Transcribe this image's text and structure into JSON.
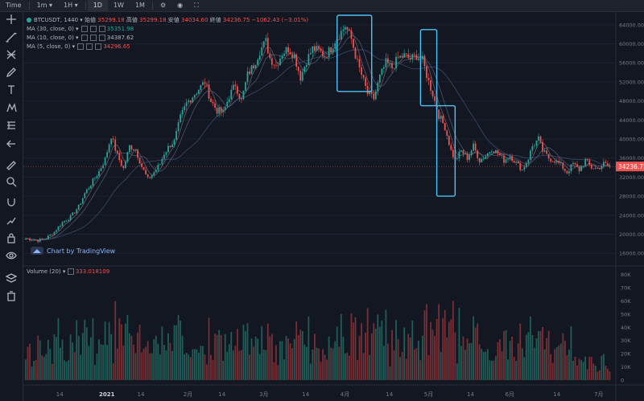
{
  "toolbar": {
    "items": [
      "Time",
      "1m",
      "1H",
      "1D",
      "1W",
      "1M"
    ],
    "active": "1D"
  },
  "sidebar": {
    "tools": [
      "crosshair-icon",
      "trendline-icon",
      "pitchfork-icon",
      "brush-icon",
      "text-icon",
      "pattern-icon",
      "measure-icon",
      "back-arrow-icon",
      "ruler-icon",
      "zoom-icon",
      "magnet-icon",
      "lock-drawing-icon",
      "lock-icon",
      "eye-icon",
      "layers-icon",
      "trash-icon"
    ]
  },
  "legend": {
    "symbol": "BTCUSDT",
    "interval": "1440",
    "open_label": "始値",
    "open": "35299.18",
    "high_label": "高値",
    "high": "35299.18",
    "low_label": "安値",
    "low": "34034.60",
    "close_label": "終値",
    "close": "34236.75",
    "change": "−1062.43 (−3.01%)",
    "ma1_label": "MA (30, close, 0)",
    "ma1_value": "35351.98",
    "ma2_label": "MA (10, close, 0)",
    "ma2_value": "34387.62",
    "ma3_label": "MA (5, close, 0)",
    "ma3_value": "34296.65"
  },
  "volume_legend": {
    "label": "Volume (20)",
    "value": "333.018109"
  },
  "branding": "Chart by TradingView",
  "colors": {
    "background": "#131722",
    "up": "#26a69a",
    "down": "#ef5350",
    "highlight_box": "#4fc3f7",
    "price_tag": "#ef5350",
    "ma_line": "#5d606b"
  },
  "chart_data": {
    "type": "candlestick",
    "symbol": "BTCUSDT",
    "interval": "1D",
    "current_price": "34236.75",
    "y_ticks": [
      16000,
      20000,
      24000,
      28000,
      32000,
      36000,
      40000,
      44000,
      48000,
      52000,
      56000,
      60000,
      64000
    ],
    "y_tick_labels": [
      "16000.00",
      "20000.00",
      "24000.00",
      "28000.00",
      "32000.00",
      "36000.00",
      "40000.00",
      "44000.00",
      "48000.00",
      "52000.00",
      "56000.00",
      "60000.00",
      "64000.00"
    ],
    "volume_ticks": [
      "0",
      "10K",
      "20K",
      "30K",
      "40K",
      "50K",
      "60K",
      "70K",
      "80K"
    ],
    "x_tick_labels": [
      "14",
      "2021",
      "14",
      "2月",
      "14",
      "3月",
      "14",
      "4月",
      "14",
      "5月",
      "14",
      "6月",
      "14",
      "7月"
    ],
    "ylim": [
      14000,
      66000
    ],
    "volume_ylim": [
      0,
      84000
    ],
    "close_path": [
      [
        0,
        19100
      ],
      [
        6,
        18700
      ],
      [
        10,
        19200
      ],
      [
        14,
        20500
      ],
      [
        18,
        22500
      ],
      [
        22,
        23600
      ],
      [
        26,
        25800
      ],
      [
        29,
        28600
      ],
      [
        32,
        30500
      ],
      [
        36,
        33200
      ],
      [
        39,
        35800
      ],
      [
        42,
        40700
      ],
      [
        45,
        36500
      ],
      [
        48,
        33800
      ],
      [
        51,
        38500
      ],
      [
        54,
        37800
      ],
      [
        57,
        34200
      ],
      [
        60,
        31500
      ],
      [
        63,
        33000
      ],
      [
        66,
        34800
      ],
      [
        68,
        37000
      ],
      [
        71,
        38800
      ],
      [
        73,
        39500
      ],
      [
        76,
        44500
      ],
      [
        79,
        47500
      ],
      [
        82,
        49000
      ],
      [
        85,
        50500
      ],
      [
        88,
        52000
      ],
      [
        91,
        48000
      ],
      [
        94,
        46000
      ],
      [
        97,
        45500
      ],
      [
        100,
        49000
      ],
      [
        103,
        51500
      ],
      [
        106,
        48000
      ],
      [
        109,
        53500
      ],
      [
        112,
        55500
      ],
      [
        115,
        58500
      ],
      [
        118,
        60500
      ],
      [
        120,
        57000
      ],
      [
        123,
        55500
      ],
      [
        126,
        58000
      ],
      [
        129,
        59000
      ],
      [
        132,
        57500
      ],
      [
        135,
        53000
      ],
      [
        138,
        56500
      ],
      [
        141,
        59000
      ],
      [
        144,
        58500
      ],
      [
        147,
        57500
      ],
      [
        150,
        59000
      ],
      [
        152,
        60800
      ],
      [
        155,
        62500
      ],
      [
        157,
        63800
      ],
      [
        160,
        61000
      ],
      [
        163,
        56000
      ],
      [
        165,
        53500
      ],
      [
        168,
        49500
      ],
      [
        171,
        48500
      ],
      [
        174,
        53000
      ],
      [
        177,
        56000
      ],
      [
        180,
        55000
      ],
      [
        183,
        57000
      ],
      [
        186,
        57500
      ],
      [
        189,
        56800
      ],
      [
        192,
        57500
      ],
      [
        195,
        56500
      ],
      [
        198,
        52000
      ],
      [
        200,
        49500
      ],
      [
        203,
        45000
      ],
      [
        206,
        42500
      ],
      [
        209,
        37500
      ],
      [
        211,
        35500
      ],
      [
        214,
        37500
      ],
      [
        217,
        36000
      ],
      [
        220,
        38500
      ],
      [
        223,
        35500
      ],
      [
        226,
        36500
      ],
      [
        229,
        38000
      ],
      [
        232,
        37000
      ],
      [
        235,
        35500
      ],
      [
        238,
        36500
      ],
      [
        241,
        35000
      ],
      [
        244,
        33500
      ],
      [
        247,
        36000
      ],
      [
        249,
        38500
      ],
      [
        252,
        40000
      ],
      [
        254,
        37500
      ],
      [
        257,
        36000
      ],
      [
        260,
        35500
      ],
      [
        263,
        34500
      ],
      [
        266,
        33000
      ],
      [
        269,
        34800
      ],
      [
        272,
        33500
      ],
      [
        275,
        35500
      ],
      [
        278,
        34000
      ],
      [
        281,
        33800
      ],
      [
        284,
        34800
      ],
      [
        287,
        34200
      ]
    ],
    "highlighted_regions": [
      {
        "from": 153,
        "to": 170,
        "low": 50000,
        "high": 66000
      },
      {
        "from": 194,
        "to": 202,
        "low": 47000,
        "high": 63000
      },
      {
        "from": 202,
        "to": 211,
        "low": 28000,
        "high": 47000
      }
    ]
  }
}
